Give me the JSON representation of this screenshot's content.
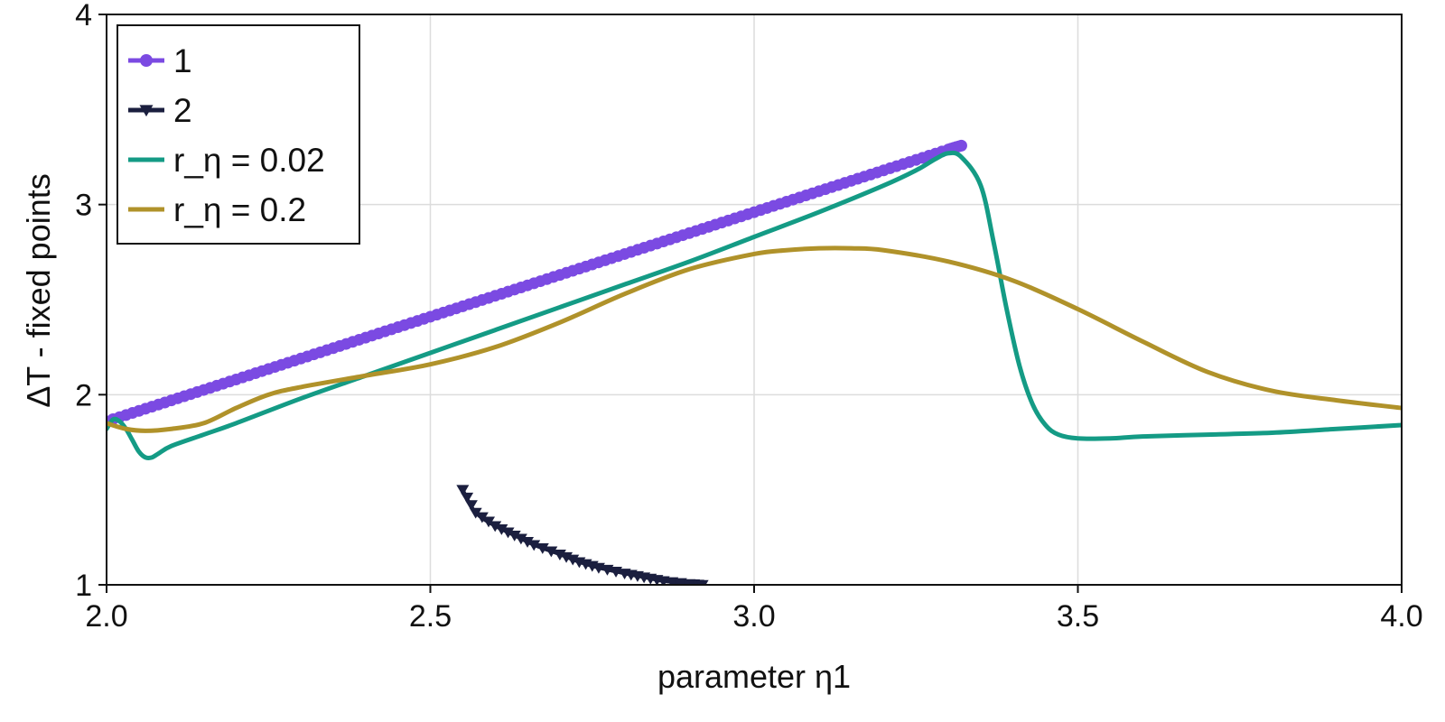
{
  "chart_data": {
    "type": "line",
    "title": "",
    "xlabel": "parameter η1",
    "ylabel": "ΔT - fixed points",
    "xlim": [
      2.0,
      4.0
    ],
    "ylim": [
      1,
      4
    ],
    "xticks": [
      2.0,
      2.5,
      3.0,
      3.5,
      4.0
    ],
    "xtick_labels": [
      "2.0",
      "2.5",
      "3.0",
      "3.5",
      "4.0"
    ],
    "yticks": [
      1,
      2,
      3,
      4
    ],
    "ytick_labels": [
      "1",
      "2",
      "3",
      "4"
    ],
    "grid": true,
    "legend": {
      "position": "top-left",
      "framed": true
    },
    "series": [
      {
        "name": "1",
        "kind": "markers-line",
        "marker": "circle",
        "color": "#7b4ae2",
        "x": [
          2.0,
          2.05,
          2.1,
          2.15,
          2.2,
          2.25,
          2.3,
          2.35,
          2.4,
          2.45,
          2.5,
          2.55,
          2.6,
          2.65,
          2.7,
          2.75,
          2.8,
          2.85,
          2.9,
          2.95,
          3.0,
          3.05,
          3.1,
          3.15,
          3.2,
          3.25,
          3.3,
          3.32
        ],
        "y": [
          1.86,
          1.915,
          1.97,
          2.025,
          2.08,
          2.135,
          2.19,
          2.245,
          2.3,
          2.355,
          2.41,
          2.465,
          2.52,
          2.575,
          2.63,
          2.685,
          2.74,
          2.795,
          2.85,
          2.905,
          2.96,
          3.015,
          3.07,
          3.125,
          3.18,
          3.235,
          3.29,
          3.31
        ]
      },
      {
        "name": "2",
        "kind": "markers-line",
        "marker": "triangle-down",
        "color": "#1b1f3f",
        "x": [
          2.55,
          2.57,
          2.6,
          2.63,
          2.66,
          2.7,
          2.73,
          2.76,
          2.8,
          2.83,
          2.86,
          2.9,
          2.92
        ],
        "y": [
          1.5,
          1.38,
          1.31,
          1.26,
          1.21,
          1.16,
          1.12,
          1.09,
          1.06,
          1.04,
          1.02,
          1.005,
          1.0
        ]
      },
      {
        "name": "r_η = 0.02",
        "kind": "line",
        "color": "#149b85",
        "x": [
          2.0,
          2.01,
          2.02,
          2.03,
          2.04,
          2.05,
          2.06,
          2.07,
          2.08,
          2.1,
          2.15,
          2.2,
          2.3,
          2.4,
          2.5,
          2.6,
          2.7,
          2.8,
          2.9,
          3.0,
          3.1,
          3.2,
          3.25,
          3.28,
          3.3,
          3.32,
          3.35,
          3.37,
          3.39,
          3.41,
          3.43,
          3.45,
          3.47,
          3.5,
          3.55,
          3.6,
          3.7,
          3.8,
          3.9,
          4.0
        ],
        "y": [
          1.82,
          1.87,
          1.86,
          1.82,
          1.76,
          1.7,
          1.67,
          1.67,
          1.69,
          1.73,
          1.79,
          1.85,
          1.98,
          2.1,
          2.22,
          2.34,
          2.46,
          2.58,
          2.7,
          2.83,
          2.96,
          3.1,
          3.18,
          3.24,
          3.27,
          3.25,
          3.1,
          2.8,
          2.45,
          2.15,
          1.95,
          1.84,
          1.79,
          1.77,
          1.77,
          1.78,
          1.79,
          1.8,
          1.82,
          1.84
        ]
      },
      {
        "name": "r_η = 0.2",
        "kind": "line",
        "color": "#b0922a",
        "x": [
          2.0,
          2.03,
          2.06,
          2.1,
          2.15,
          2.2,
          2.25,
          2.3,
          2.4,
          2.5,
          2.6,
          2.7,
          2.8,
          2.9,
          3.0,
          3.05,
          3.1,
          3.15,
          3.2,
          3.3,
          3.4,
          3.5,
          3.6,
          3.7,
          3.8,
          3.9,
          4.0
        ],
        "y": [
          1.85,
          1.82,
          1.81,
          1.82,
          1.85,
          1.93,
          2.0,
          2.04,
          2.1,
          2.16,
          2.25,
          2.38,
          2.53,
          2.66,
          2.74,
          2.76,
          2.77,
          2.77,
          2.76,
          2.7,
          2.6,
          2.45,
          2.28,
          2.12,
          2.02,
          1.97,
          1.93
        ]
      }
    ]
  }
}
